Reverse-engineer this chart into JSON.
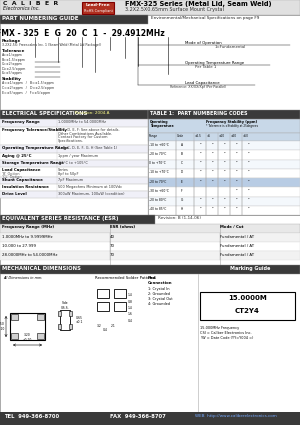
{
  "title_company": "C  A  L  I  B  E  R",
  "title_sub": "Electronics Inc.",
  "title_badge_top": "Lead-Free",
  "title_badge_bot": "RoHS Compliant",
  "series_title": "FMX-325 Series (Metal Lid, Seam Weld)",
  "series_sub": "3.2X2.5X0.65mm Surface Mount Crystal",
  "section1_title": "PART NUMBERING GUIDE",
  "section1_right": "Environmental/Mechanical Specifications on page F9",
  "part_number_display": "FMX - 325  E  G  20  C  1  -  29.4912MHz",
  "png_label1": "Package",
  "png_desc1": "3.2X2.5X: Freescalers Inc. 1 (Seam Weld (Metal Lid Package))",
  "png_label2": "Tolerance",
  "png_tol": [
    "A=±1/±ppm",
    "B=±1.5/±ppm",
    "C=±2/±ppm",
    "D=±2.5/±ppm",
    "E=±5/±ppm"
  ],
  "png_label3": "Stability",
  "png_stab": [
    "A=±1/±ppm   /   B=±1.5/±ppm",
    "C=±2/±ppm   /   D=±2.5/±ppm",
    "E=±5/±ppm   /   F=±5/±ppm"
  ],
  "png_right1": "Mode of Operation",
  "png_right1v": "1=Fundamental",
  "png_right2": "Operating Temperature Range",
  "png_right2v": "Per Table 1",
  "png_right3": "Lead Capacitance",
  "png_right3v": "Reference: XX/XX/Xpf (Per Parallel)",
  "elec_title": "ELECTRICAL SPECIFICATIONS",
  "elec_rev": "Revision: 2004-A",
  "elec_rows": [
    [
      "Frequency Range",
      "1.0000MHz to 54.0000MHz"
    ],
    [
      "Frequency Tolerance/Stability",
      "B, C, D, E, F: See above for details.\nOther Combinations Available.\nContact Factory for Custom\nSpecifications."
    ],
    [
      "Operating Temperature Range",
      "A, B, C, D, E, F, G, H (See Table 1)"
    ],
    [
      "Aging @ 25°C",
      "1ppm / year Maximum"
    ],
    [
      "Storage Temperature Range",
      "-55°C to +105°C"
    ],
    [
      "Load Capacitance\n'B' Option\n'CL' Option",
      "Series\n8pf to 50pF"
    ],
    [
      "Shunt Capacitance",
      "7pF Maximum"
    ],
    [
      "Insulation Resistance",
      "500 Megaohms Minimum at 100Vdc"
    ],
    [
      "Drive Level",
      "300uW Maximum, 100uW (condition)"
    ]
  ],
  "table1_title": "TABLE 1:  PART NUMBERING CODES",
  "table1_rows": [
    [
      "-10 to +60°C",
      "A",
      "•",
      "•",
      "•",
      "•",
      "•"
    ],
    [
      "-20 to 70°C",
      "B",
      "•",
      "•",
      "•",
      "•",
      "•"
    ],
    [
      "0 to +70°C",
      "C",
      "•",
      "•",
      "•",
      "•",
      "•"
    ],
    [
      "-10 to +70°C",
      "D",
      "•",
      "•",
      "•",
      "•",
      "•"
    ],
    [
      "-20 to 70°C",
      "E",
      "•",
      "•",
      "•",
      "•",
      "•"
    ],
    [
      "-30 to +60°C",
      "F",
      "",
      "",
      "",
      "•",
      "•"
    ],
    [
      "-20 to 80°C",
      "G",
      "•",
      "•",
      "•",
      "•",
      "•"
    ],
    [
      "-40 to 85°C",
      "H",
      "•",
      "•",
      "•",
      "•",
      "•"
    ]
  ],
  "esr_title": "EQUIVALENT SERIES RESISTANCE (ESR)",
  "esr_rev": "Revision: B (1-14-06)",
  "esr_headers": [
    "Frequency Range (MHz)",
    "ESR (ohms)",
    "Mode / Cut"
  ],
  "esr_rows": [
    [
      "1.0000MHz to 9.9999MHz",
      "40",
      "Fundamental / AT"
    ],
    [
      "10.000 to 27.999",
      "70",
      "Fundamental / AT"
    ],
    [
      "28.0000MHz to 54.0000MHz",
      "70",
      "Fundamental / AT"
    ]
  ],
  "mech_title": "MECHANICAL DIMENSIONS",
  "mech_guide": "Marking Guide",
  "mark_top": "15.0000M",
  "mark_bot": "CT2Y4",
  "mark_line1": "15.000MHz Frequency",
  "mark_line2": "CSI = Caliber Electronics Inc.",
  "mark_line3": "YW = Date Code (YY=Y004 =)",
  "footer_tel": "TEL  949-366-8700",
  "footer_fax": "FAX  949-366-8707",
  "footer_web": "WEB  http://www.caliberelectronics.com",
  "bg_color": "#ffffff",
  "dark_header_bg": "#3a3a3a",
  "badge_bg": "#b03020",
  "highlight_row_bg": "#b8cce4",
  "section_border": "#888888",
  "header_area_bg": "#e0e0e0"
}
